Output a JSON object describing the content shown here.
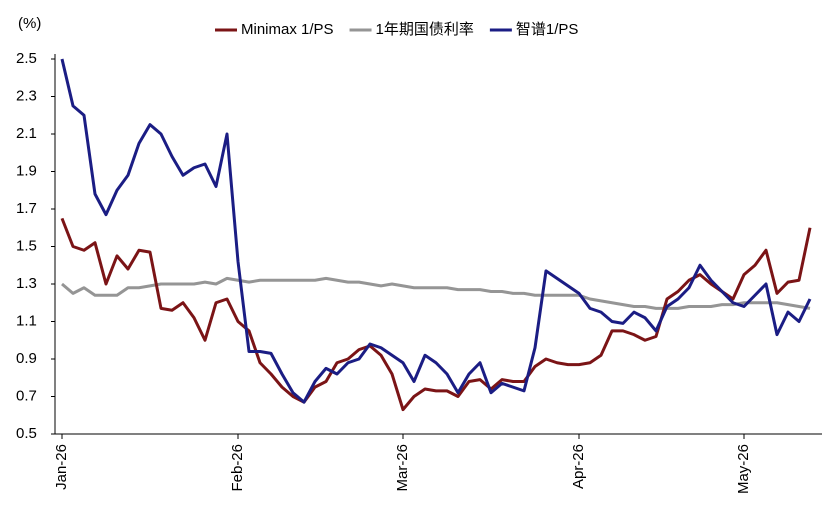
{
  "chart_data": {
    "type": "line",
    "y_label": "(%)",
    "categories": [
      "Jan-26",
      null,
      null,
      null,
      null,
      null,
      null,
      null,
      null,
      null,
      null,
      null,
      null,
      null,
      null,
      null,
      "Feb-26",
      null,
      null,
      null,
      null,
      null,
      null,
      null,
      null,
      null,
      null,
      null,
      null,
      null,
      null,
      "Mar-26",
      null,
      null,
      null,
      null,
      null,
      null,
      null,
      null,
      null,
      null,
      null,
      null,
      null,
      null,
      null,
      "Apr-26",
      null,
      null,
      null,
      null,
      null,
      null,
      null,
      null,
      null,
      null,
      null,
      null,
      null,
      null,
      "May-26",
      null,
      null,
      null,
      null,
      null,
      null
    ],
    "series": [
      {
        "name": "Minimax 1/PS",
        "color": "#7b1416",
        "values": [
          1.65,
          1.5,
          1.48,
          1.52,
          1.3,
          1.45,
          1.38,
          1.48,
          1.47,
          1.17,
          1.16,
          1.2,
          1.12,
          1.0,
          1.2,
          1.22,
          1.1,
          1.05,
          0.88,
          0.82,
          0.75,
          0.7,
          0.67,
          0.75,
          0.78,
          0.88,
          0.9,
          0.95,
          0.97,
          0.92,
          0.82,
          0.63,
          0.7,
          0.74,
          0.73,
          0.73,
          0.7,
          0.78,
          0.79,
          0.74,
          0.79,
          0.78,
          0.78,
          0.86,
          0.9,
          0.88,
          0.87,
          0.87,
          0.88,
          0.92,
          1.05,
          1.05,
          1.03,
          1.0,
          1.02,
          1.22,
          1.26,
          1.32,
          1.35,
          1.3,
          1.26,
          1.22,
          1.35,
          1.4,
          1.48,
          1.25,
          1.31,
          1.32,
          1.6
        ]
      },
      {
        "name": "1年期国债利率",
        "color": "#959595",
        "values": [
          1.3,
          1.25,
          1.28,
          1.24,
          1.24,
          1.24,
          1.28,
          1.28,
          1.29,
          1.3,
          1.3,
          1.3,
          1.3,
          1.31,
          1.3,
          1.33,
          1.32,
          1.31,
          1.32,
          1.32,
          1.32,
          1.32,
          1.32,
          1.32,
          1.33,
          1.32,
          1.31,
          1.31,
          1.3,
          1.29,
          1.3,
          1.29,
          1.28,
          1.28,
          1.28,
          1.28,
          1.27,
          1.27,
          1.27,
          1.26,
          1.26,
          1.25,
          1.25,
          1.24,
          1.24,
          1.24,
          1.24,
          1.24,
          1.22,
          1.21,
          1.2,
          1.19,
          1.18,
          1.18,
          1.17,
          1.17,
          1.17,
          1.18,
          1.18,
          1.18,
          1.19,
          1.19,
          1.2,
          1.2,
          1.2,
          1.2,
          1.19,
          1.18,
          1.17
        ]
      },
      {
        "name": "智谱1/PS",
        "color": "#1b1d84",
        "values": [
          2.5,
          2.25,
          2.2,
          1.78,
          1.67,
          1.8,
          1.88,
          2.05,
          2.15,
          2.1,
          1.98,
          1.88,
          1.92,
          1.94,
          1.82,
          2.1,
          1.42,
          0.94,
          0.94,
          0.93,
          0.82,
          0.72,
          0.67,
          0.78,
          0.85,
          0.82,
          0.88,
          0.9,
          0.98,
          0.96,
          0.92,
          0.88,
          0.78,
          0.92,
          0.88,
          0.82,
          0.72,
          0.82,
          0.88,
          0.72,
          0.77,
          0.75,
          0.73,
          0.96,
          1.37,
          1.33,
          1.29,
          1.25,
          1.17,
          1.15,
          1.1,
          1.09,
          1.15,
          1.12,
          1.05,
          1.18,
          1.22,
          1.28,
          1.4,
          1.32,
          1.26,
          1.2,
          1.18,
          1.24,
          1.3,
          1.03,
          1.15,
          1.1,
          1.22
        ]
      }
    ],
    "ylim": [
      0.5,
      2.5
    ],
    "yticks": [
      0.5,
      0.7,
      0.9,
      1.1,
      1.3,
      1.5,
      1.7,
      1.9,
      2.1,
      2.3,
      2.5
    ],
    "legend": "top"
  }
}
